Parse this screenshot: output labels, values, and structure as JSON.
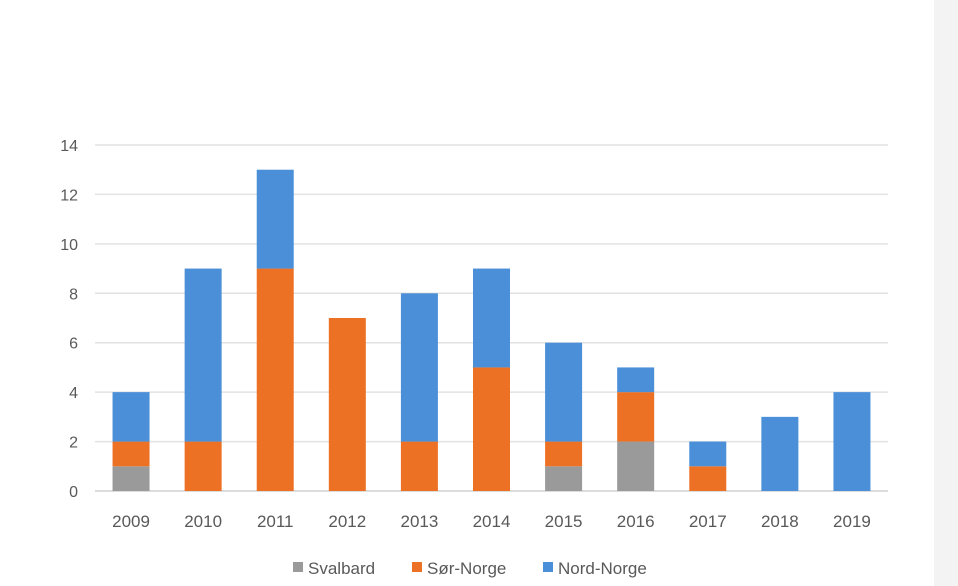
{
  "chart_data": {
    "type": "bar",
    "stacked": true,
    "title": "",
    "xlabel": "",
    "ylabel": "",
    "categories": [
      "2009",
      "2010",
      "2011",
      "2012",
      "2013",
      "2014",
      "2015",
      "2016",
      "2017",
      "2018",
      "2019"
    ],
    "series": [
      {
        "name": "Svalbard",
        "color": "#9a9a9a",
        "values": [
          1,
          0,
          0,
          0,
          0,
          0,
          1,
          2,
          0,
          0,
          0
        ]
      },
      {
        "name": "Sør-Norge",
        "color": "#ed7125",
        "values": [
          1,
          2,
          9,
          7,
          2,
          5,
          1,
          2,
          1,
          0,
          0
        ]
      },
      {
        "name": "Nord-Norge",
        "color": "#4a8fd8",
        "values": [
          2,
          7,
          4,
          0,
          6,
          4,
          4,
          1,
          1,
          3,
          4
        ]
      }
    ],
    "ylim": [
      0,
      14
    ],
    "yticks": [
      0,
      2,
      4,
      6,
      8,
      10,
      12,
      14
    ],
    "grid": true,
    "legend": "bottom"
  }
}
